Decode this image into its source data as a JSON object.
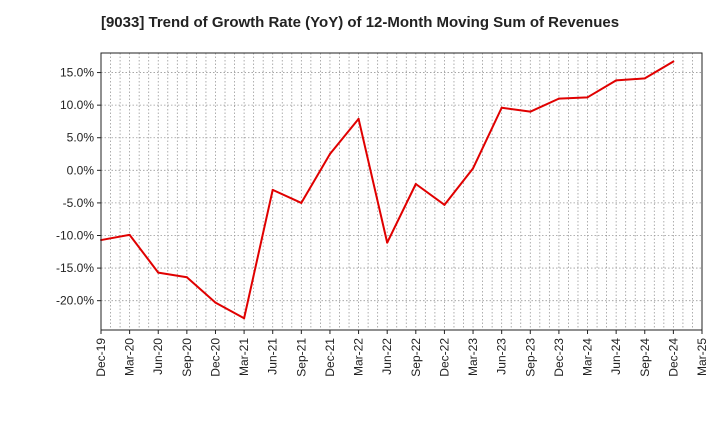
{
  "chart_data": {
    "type": "line",
    "title": "[9033]  Trend of Growth Rate (YoY) of 12-Month Moving Sum of Revenues",
    "xlabel": "",
    "ylabel": "",
    "x_tick_labels": [
      "Dec-19",
      "Mar-20",
      "Jun-20",
      "Sep-20",
      "Dec-20",
      "Mar-21",
      "Jun-21",
      "Sep-21",
      "Dec-21",
      "Mar-22",
      "Jun-22",
      "Sep-22",
      "Dec-22",
      "Mar-23",
      "Jun-23",
      "Sep-23",
      "Dec-23",
      "Mar-24",
      "Jun-24",
      "Sep-24",
      "Dec-24",
      "Mar-25"
    ],
    "y_ticks": [
      -20,
      -15,
      -10,
      -5,
      0,
      5,
      10,
      15
    ],
    "y_tick_labels": [
      "-20.0%",
      "-15.0%",
      "-10.0%",
      "-5.0%",
      "0.0%",
      "5.0%",
      "10.0%",
      "15.0%"
    ],
    "ylim": [
      -24.5,
      18.0
    ],
    "grid": true,
    "series": [
      {
        "color": "#e00000",
        "x": [
          "Dec-19",
          "Mar-20",
          "Jun-20",
          "Sep-20",
          "Dec-20",
          "Mar-21",
          "Jun-21",
          "Sep-21",
          "Dec-21",
          "Mar-22",
          "Jun-22",
          "Sep-22",
          "Dec-22",
          "Mar-23",
          "Jun-23",
          "Sep-23",
          "Dec-23",
          "Mar-24",
          "Jun-24",
          "Sep-24",
          "Dec-24"
        ],
        "values": [
          -10.7,
          -9.9,
          -15.7,
          -16.4,
          -20.3,
          -22.7,
          -3.0,
          -5.0,
          2.5,
          7.9,
          -11.1,
          -2.1,
          -5.3,
          0.3,
          9.6,
          9.0,
          11.0,
          11.2,
          13.8,
          14.1,
          16.7
        ]
      }
    ]
  }
}
